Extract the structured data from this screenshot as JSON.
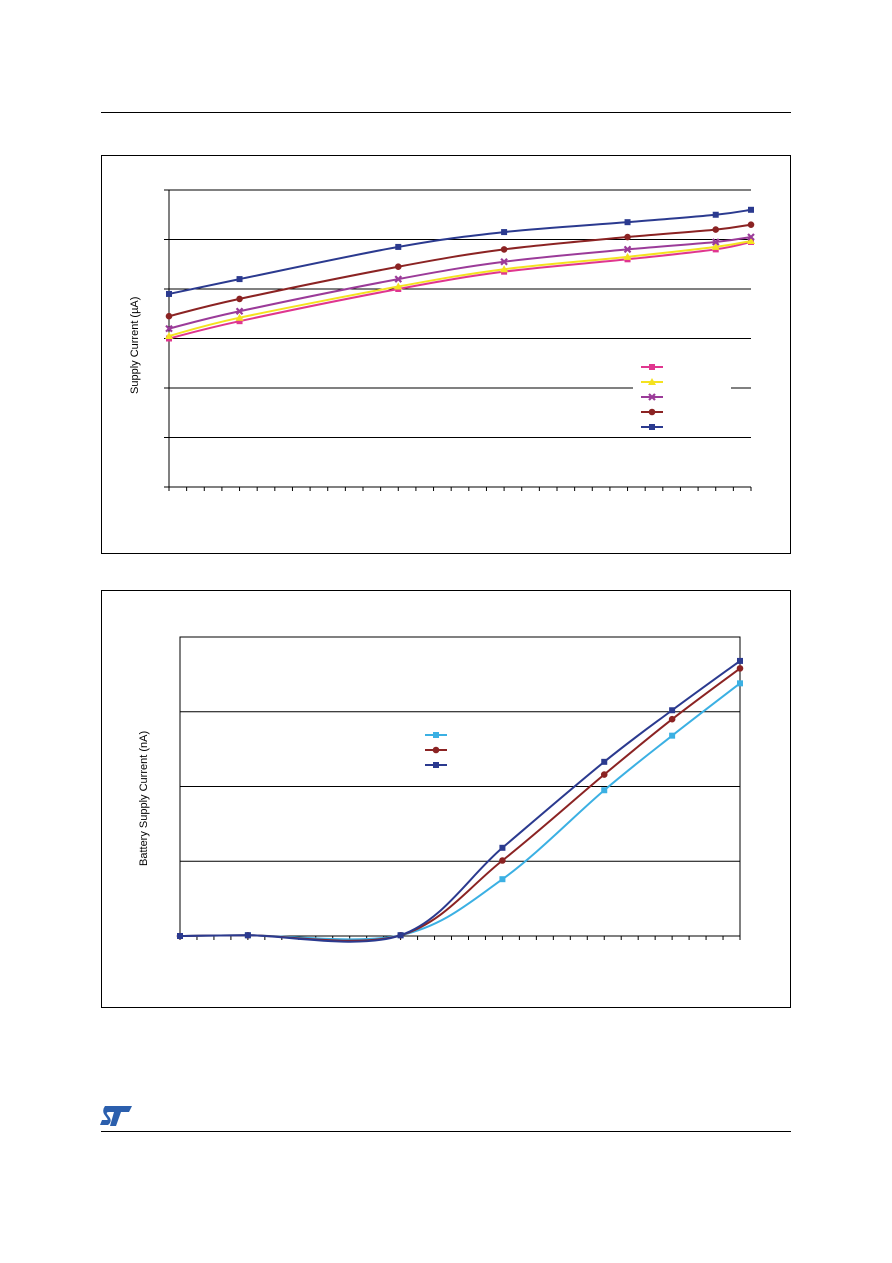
{
  "colors": {
    "frame": "#000000",
    "grid": "#000000",
    "pink": "#e0368f",
    "yellow": "#f4e220",
    "purple": "#9b3b99",
    "maroon": "#8b2323",
    "navy": "#2b3a8f",
    "cyan": "#3bb0e3",
    "logo": "#2b5fad"
  },
  "chart_data": [
    {
      "type": "line",
      "title": "",
      "xlabel": "",
      "ylabel": "Supply Current (µA)",
      "x": [
        0,
        2,
        6.5,
        9.5,
        13,
        15.5,
        16.5
      ],
      "xlim": [
        0,
        16.5
      ],
      "ylim": [
        0,
        6
      ],
      "x_minor_ticks": 33,
      "grid": "horizontal",
      "legend": "right",
      "series": [
        {
          "color": "pink",
          "marker": "square",
          "values": [
            3.0,
            3.35,
            4.0,
            4.35,
            4.6,
            4.8,
            4.95
          ]
        },
        {
          "color": "yellow",
          "marker": "triangle",
          "values": [
            3.05,
            3.42,
            4.05,
            4.4,
            4.65,
            4.85,
            4.97
          ]
        },
        {
          "color": "purple",
          "marker": "x",
          "values": [
            3.2,
            3.55,
            4.2,
            4.55,
            4.8,
            4.95,
            5.05
          ]
        },
        {
          "color": "maroon",
          "marker": "circle",
          "values": [
            3.45,
            3.8,
            4.45,
            4.8,
            5.05,
            5.2,
            5.3
          ]
        },
        {
          "color": "navy",
          "marker": "square",
          "values": [
            3.9,
            4.2,
            4.85,
            5.15,
            5.35,
            5.5,
            5.6
          ]
        }
      ]
    },
    {
      "type": "line",
      "title": "",
      "xlabel": "",
      "ylabel": "Battery Supply Current (nA)",
      "x": [
        0,
        2,
        6.5,
        9.5,
        12.5,
        14.5,
        16.5
      ],
      "xlim": [
        0,
        16.5
      ],
      "ylim": [
        0,
        4
      ],
      "x_minor_ticks": 33,
      "grid": "horizontal",
      "legend": "center",
      "series": [
        {
          "color": "cyan",
          "marker": "square",
          "values": [
            0,
            0.01,
            0.01,
            0.76,
            1.95,
            2.68,
            3.38
          ]
        },
        {
          "color": "maroon",
          "marker": "circle",
          "values": [
            0,
            0.01,
            0.01,
            1.01,
            2.16,
            2.9,
            3.58
          ]
        },
        {
          "color": "navy",
          "marker": "square",
          "values": [
            0,
            0.01,
            0.01,
            1.18,
            2.33,
            3.02,
            3.68
          ]
        }
      ]
    }
  ]
}
